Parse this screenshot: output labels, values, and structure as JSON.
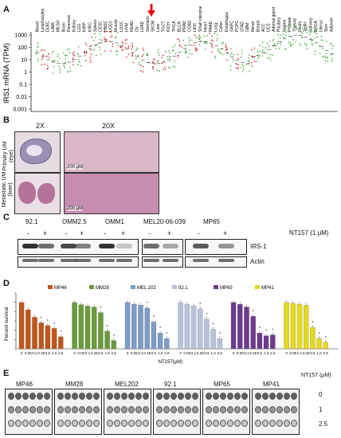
{
  "panels": {
    "a": "A",
    "b": "B",
    "c": "C",
    "d": "D",
    "e": "E"
  },
  "panelA": {
    "ylabel": "IRS1 mRNA (TPM)",
    "yticks": [
      "1000",
      "100",
      "10",
      "1",
      "0.1",
      "0.01",
      "0.001"
    ],
    "tissues": [
      "Blood",
      "Lymphocytes",
      "DLBC",
      "LAML",
      "MESO",
      "Brain",
      "Pancreas",
      "Kidney",
      "LGG",
      "KIRP",
      "KIRC",
      "Spleen",
      "CESC",
      "HNSC",
      "UCEC",
      "Muscle",
      "LUSC",
      "UVM",
      "READ",
      "OV",
      "LUAD",
      "Stomach",
      "SKCM",
      "Liver",
      "TGCT",
      "KICH",
      "THCA",
      "BLCA",
      "PRAD",
      "COAD",
      "LIHC",
      "Small intestine",
      "Heart",
      "PAAD",
      "Lung",
      "Colon",
      "Esophagus",
      "SARC",
      "PCPG",
      "STAD",
      "GBM",
      "Nerve",
      "Breast",
      "ACC",
      "UCS",
      "Adrenal gland",
      "Pituitary",
      "Vagina",
      "Prostate",
      "Thyroid",
      "Ovary",
      "Testis",
      "Salivary",
      "BRCA",
      "Uterus",
      "Skin",
      "Adipose"
    ]
  },
  "panelB": {
    "col1": "2X",
    "col2": "20X",
    "row1": "Primary UM (eye)",
    "row2": "Metastatic UM (liver)",
    "scale1": "200 μM",
    "scale2": "200 μM"
  },
  "panelC": {
    "treatment": "NT157 (1 μM)",
    "groups": [
      "92.1",
      "OMM2.5",
      "OMM1",
      "MEL20-06-039",
      "MP65"
    ],
    "minus": "-",
    "plus": "+",
    "irs": "IRS-1",
    "actin": "Actin"
  },
  "panelD": {
    "ylabel": "Percent survival",
    "xlabel": "NT157(μM)",
    "ticks": [
      "0",
      "0.05",
      "0.1",
      "0.25",
      "0.5",
      "1.0",
      "2.5"
    ]
  },
  "panelE": {
    "lines": [
      "MP46",
      "MM28",
      "MEL202",
      "92.1",
      "MP65",
      "MP41"
    ],
    "unit": "NT157 (μM)",
    "rows": [
      "0",
      "1",
      "2.5"
    ]
  },
  "chart_data": [
    {
      "type": "bar",
      "ylabel": "Percent survival",
      "xlabel": "NT157(μM)",
      "ylim": [
        0,
        120
      ],
      "categories": [
        "0",
        "0.05",
        "0.1",
        "0.25",
        "0.5",
        "1.0",
        "2.5"
      ],
      "series": [
        {
          "name": "MP46",
          "color": "#c0561a",
          "values": [
            100,
            84,
            68,
            56,
            50,
            44,
            26
          ]
        },
        {
          "name": "MM28",
          "color": "#6a9a3a",
          "values": [
            100,
            95,
            92,
            90,
            78,
            38,
            18
          ]
        },
        {
          "name": "MEL 202",
          "color": "#7d9bc8",
          "values": [
            100,
            96,
            94,
            88,
            58,
            34,
            22
          ]
        },
        {
          "name": "92.1",
          "color": "#b8c2d9",
          "values": [
            100,
            96,
            92,
            86,
            64,
            42,
            22
          ]
        },
        {
          "name": "MP65",
          "color": "#6c3a8c",
          "values": [
            100,
            96,
            90,
            70,
            34,
            28,
            30
          ]
        },
        {
          "name": "MP41",
          "color": "#e6d81e",
          "values": [
            100,
            98,
            96,
            94,
            46,
            22,
            14
          ]
        }
      ]
    }
  ]
}
